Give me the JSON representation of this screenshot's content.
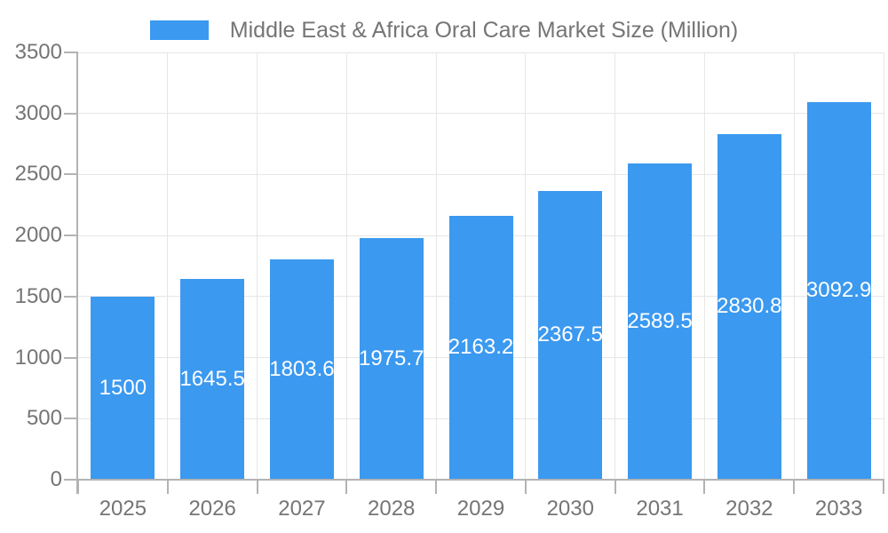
{
  "chart_data": {
    "type": "bar",
    "title": "Middle East & Africa Oral Care Market Size (Million)",
    "categories": [
      "2025",
      "2026",
      "2027",
      "2028",
      "2029",
      "2030",
      "2031",
      "2032",
      "2033"
    ],
    "values": [
      1500,
      1645.5,
      1803.6,
      1975.7,
      2163.2,
      2367.5,
      2589.5,
      2830.8,
      3092.9
    ],
    "value_labels": [
      "1500",
      "1645.5",
      "1803.6",
      "1975.7",
      "2163.2",
      "2367.5",
      "2589.5",
      "2830.8",
      "3092.9"
    ],
    "xlabel": "",
    "ylabel": "",
    "ylim": [
      0,
      3500
    ],
    "yticks": [
      0,
      500,
      1000,
      1500,
      2000,
      2500,
      3000,
      3500
    ],
    "ytick_labels": [
      "0",
      "500",
      "1000",
      "1500",
      "2000",
      "2500",
      "3000",
      "3500"
    ],
    "grid": true,
    "legend_position": "top",
    "colors": {
      "bar": "#3b99f0",
      "grid": "#e6e6e6",
      "axis": "#b3b3b3",
      "text": "#757575",
      "value_label": "#ffffff",
      "background": "#ffffff"
    }
  }
}
